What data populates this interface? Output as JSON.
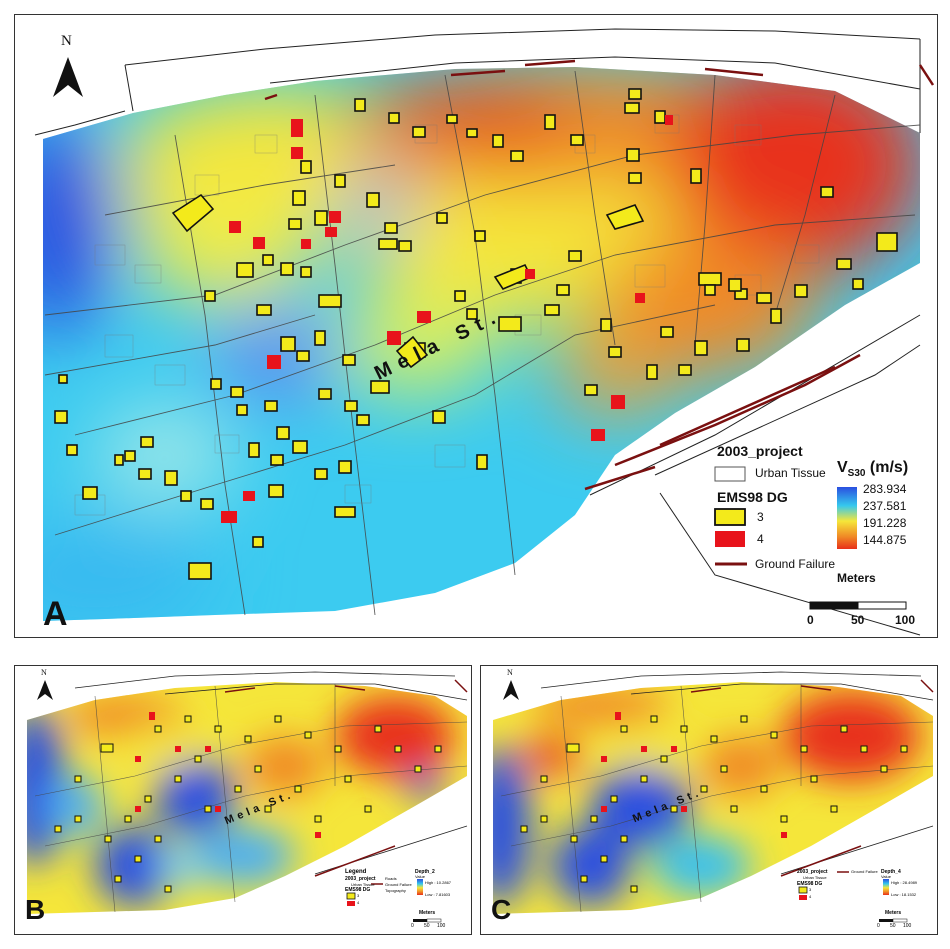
{
  "panels": {
    "a": {
      "letter": "A",
      "north": "N",
      "street": "Mela St.",
      "legend": {
        "title": "2003_project",
        "urban_tissue": "Urban Tissue",
        "ems_title": "EMS98 DG",
        "dg3": "3",
        "dg4": "4",
        "ground_failure": "Ground Failure",
        "vs30_main": "V",
        "vs30_sub": "S30",
        "vs30_unit": "(m/s)",
        "vs30_ticks": [
          "283.934",
          "237.581",
          "191.228",
          "144.875"
        ],
        "scale_title": "Meters",
        "scale_ticks": [
          "0",
          "50",
          "100"
        ]
      }
    },
    "b": {
      "letter": "B",
      "north": "N",
      "street": "Mela St.",
      "legend": {
        "heading": "Legend",
        "title": "2003_project",
        "urban_tissue": "Urban Tissue",
        "ems_title": "EMS98 DG",
        "dg3": "3",
        "dg4": "4",
        "roads": "Roads",
        "ground_failure": "Ground Failure",
        "topography": "Topography",
        "depth_title": "Depth_2",
        "value_label": "Value",
        "high": "High : 10.2867",
        "low": "Low : 7.81603",
        "scale_title": "Meters",
        "scale_ticks": [
          "0",
          "50",
          "100"
        ]
      }
    },
    "c": {
      "letter": "C",
      "north": "N",
      "street": "Mela St.",
      "legend": {
        "title": "2003_project",
        "urban_tissue": "Urban Tissue",
        "ems_title": "EMS98 DG",
        "dg3": "3",
        "dg4": "4",
        "ground_failure": "Ground Failure",
        "depth_title": "Depth_4",
        "value_label": "Value",
        "high": "High : 28.4989",
        "low": "Low : 18.1532",
        "scale_title": "Meters",
        "scale_ticks": [
          "0",
          "50",
          "100"
        ]
      }
    }
  },
  "colors": {
    "high_blue": "#2a4fe0",
    "cyan": "#35c8ee",
    "yellow": "#f5e63a",
    "orange": "#f08a26",
    "red": "#e8301a",
    "building_dg3": "#f3ea1b",
    "building_dg4": "#e8131b",
    "ground_failure": "#7a1010"
  }
}
